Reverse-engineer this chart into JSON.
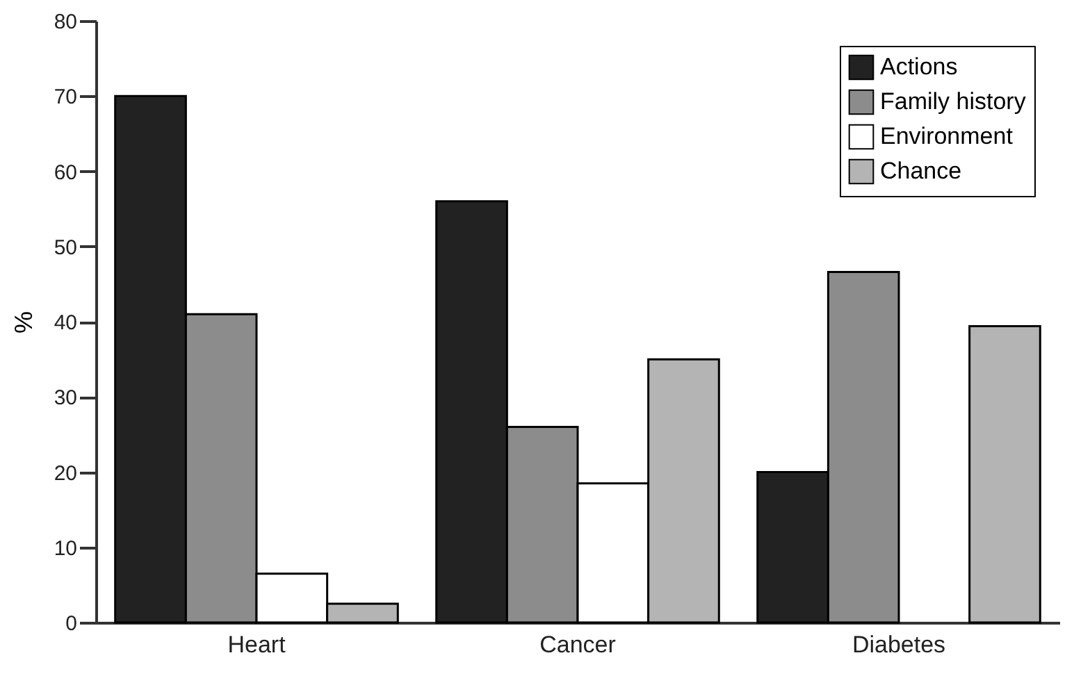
{
  "chart_data": {
    "type": "bar",
    "ylabel": "%",
    "categories": [
      "Heart",
      "Cancer",
      "Diabetes"
    ],
    "series": [
      {
        "name": "Actions",
        "color": "#222222",
        "values": [
          70,
          56,
          20
        ]
      },
      {
        "name": "Family history",
        "color": "#8c8c8c",
        "values": [
          41,
          26,
          46.6
        ]
      },
      {
        "name": "Environment",
        "color": "#ffffff",
        "values": [
          6.5,
          18.5,
          null
        ]
      },
      {
        "name": "Chance",
        "color": "#b4b4b4",
        "values": [
          2.5,
          35,
          39.4
        ]
      }
    ],
    "ylim": [
      0,
      80
    ],
    "yticks": [
      0,
      10,
      20,
      30,
      40,
      50,
      60,
      70,
      80
    ],
    "grid": false,
    "legend": "top right"
  }
}
